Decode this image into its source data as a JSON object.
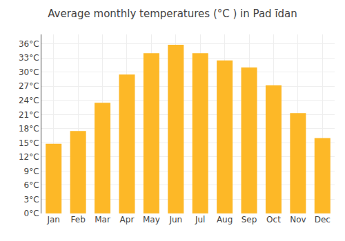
{
  "chart_data": {
    "type": "bar",
    "title": "Average monthly temperatures (°C ) in Pad īdan",
    "categories": [
      "Jan",
      "Feb",
      "Mar",
      "Apr",
      "May",
      "Jun",
      "Jul",
      "Aug",
      "Sep",
      "Oct",
      "Nov",
      "Dec"
    ],
    "values": [
      14.8,
      17.5,
      23.5,
      29.5,
      34.0,
      35.8,
      34.0,
      32.5,
      31.0,
      27.2,
      21.3,
      16.0
    ],
    "color": "#FDB827",
    "ylim": [
      0,
      38
    ],
    "yticks": [
      {
        "value": 0,
        "label": "0°C"
      },
      {
        "value": 3,
        "label": "3°C"
      },
      {
        "value": 6,
        "label": "6°C"
      },
      {
        "value": 9,
        "label": "9°C"
      },
      {
        "value": 12,
        "label": "12°C"
      },
      {
        "value": 15,
        "label": "15°C"
      },
      {
        "value": 18,
        "label": "18°C"
      },
      {
        "value": 21,
        "label": "21°C"
      },
      {
        "value": 24,
        "label": "24°C"
      },
      {
        "value": 27,
        "label": "27°C"
      },
      {
        "value": 30,
        "label": "30°C"
      },
      {
        "value": 33,
        "label": "33°C"
      },
      {
        "value": 36,
        "label": "36°C"
      }
    ],
    "grid": true
  }
}
